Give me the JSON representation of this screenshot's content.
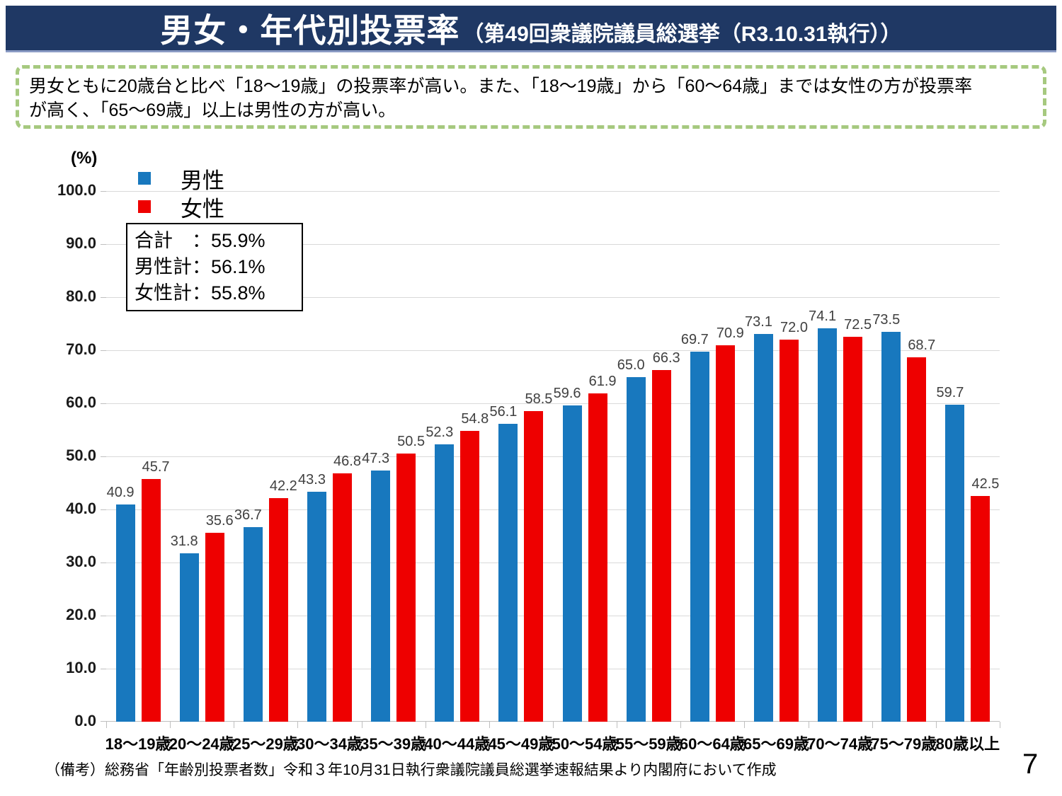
{
  "header": {
    "title_main": "男女・年代別投票率",
    "title_sub": "（第49回衆議院議員総選挙（R3.10.31執行））"
  },
  "note": {
    "lines": [
      "男女ともに20歳台と比べ「18～19歳」の投票率が高い。また、「18～19歳」から「60～64歳」までは女性の方が投票率",
      "が高く、「65～69歳」以上は男性の方が高い。"
    ]
  },
  "axis": {
    "unit_label": "(%)"
  },
  "totals_box": {
    "rows": [
      "合計　：55.9%",
      "男性計：56.1%",
      "女性計：55.8%"
    ]
  },
  "chart_data": {
    "type": "bar",
    "title": "男女・年代別投票率（第49回衆議院議員総選挙（R3.10.31執行））",
    "categories": [
      "18～19歳",
      "20～24歳",
      "25～29歳",
      "30～34歳",
      "35～39歳",
      "40～44歳",
      "45～49歳",
      "50～54歳",
      "55～59歳",
      "60～64歳",
      "65～69歳",
      "70～74歳",
      "75～79歳",
      "80歳以上"
    ],
    "series": [
      {
        "name": "男性",
        "color": "#1878BE",
        "values": [
          40.9,
          31.8,
          36.7,
          43.3,
          47.3,
          52.3,
          56.1,
          59.6,
          65.0,
          69.7,
          73.1,
          74.1,
          73.5,
          59.7
        ]
      },
      {
        "name": "女性",
        "color": "#EE0000",
        "values": [
          45.7,
          35.6,
          42.2,
          46.8,
          50.5,
          54.8,
          58.5,
          61.9,
          66.3,
          70.9,
          72.0,
          72.5,
          68.7,
          42.5
        ]
      }
    ],
    "ylabel": "(%)",
    "ylim": [
      0,
      100
    ],
    "y_tick_step": 10,
    "grid": true,
    "legend_position": "top-left",
    "totals": {
      "overall": "55.9%",
      "male": "56.1%",
      "female": "55.8%"
    }
  },
  "footer": {
    "note": "（備考）総務省「年齢別投票者数」令和３年10月31日執行衆議院議員総選挙速報結果より内閣府において作成",
    "page_number": "7"
  },
  "colors": {
    "header_bg": "#1F3864",
    "male": "#1878BE",
    "female": "#EE0000",
    "note_border": "#A6C97F",
    "gridline": "#D9D9D9"
  }
}
